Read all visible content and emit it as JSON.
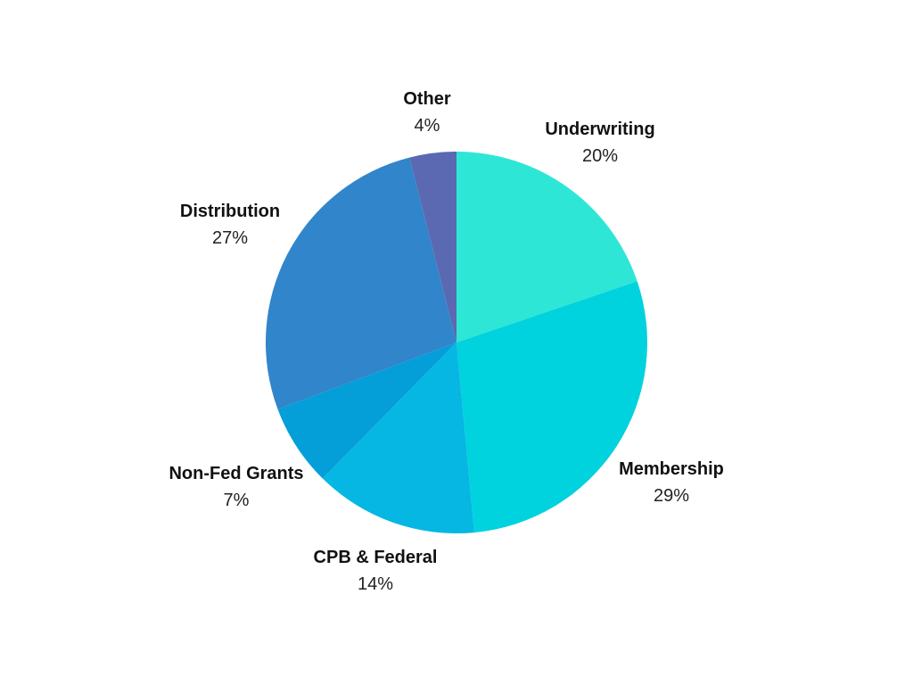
{
  "chart_data": {
    "type": "pie",
    "title": "",
    "start": "12 o'clock",
    "direction": "clockwise",
    "slices": [
      {
        "label": "Underwriting",
        "value": 20,
        "value_label": "20%",
        "color": "#2EE6D6"
      },
      {
        "label": "Membership",
        "value": 29,
        "value_label": "29%",
        "color": "#00D2DE"
      },
      {
        "label": "CPB & Federal",
        "value": 14,
        "value_label": "14%",
        "color": "#06B7E3"
      },
      {
        "label": "Non-Fed Grants",
        "value": 7,
        "value_label": "7%",
        "color": "#049ED9"
      },
      {
        "label": "Distribution",
        "value": 27,
        "value_label": "27%",
        "color": "#3185CB"
      },
      {
        "label": "Other",
        "value": 4,
        "value_label": "4%",
        "color": "#5B69B2"
      }
    ]
  }
}
